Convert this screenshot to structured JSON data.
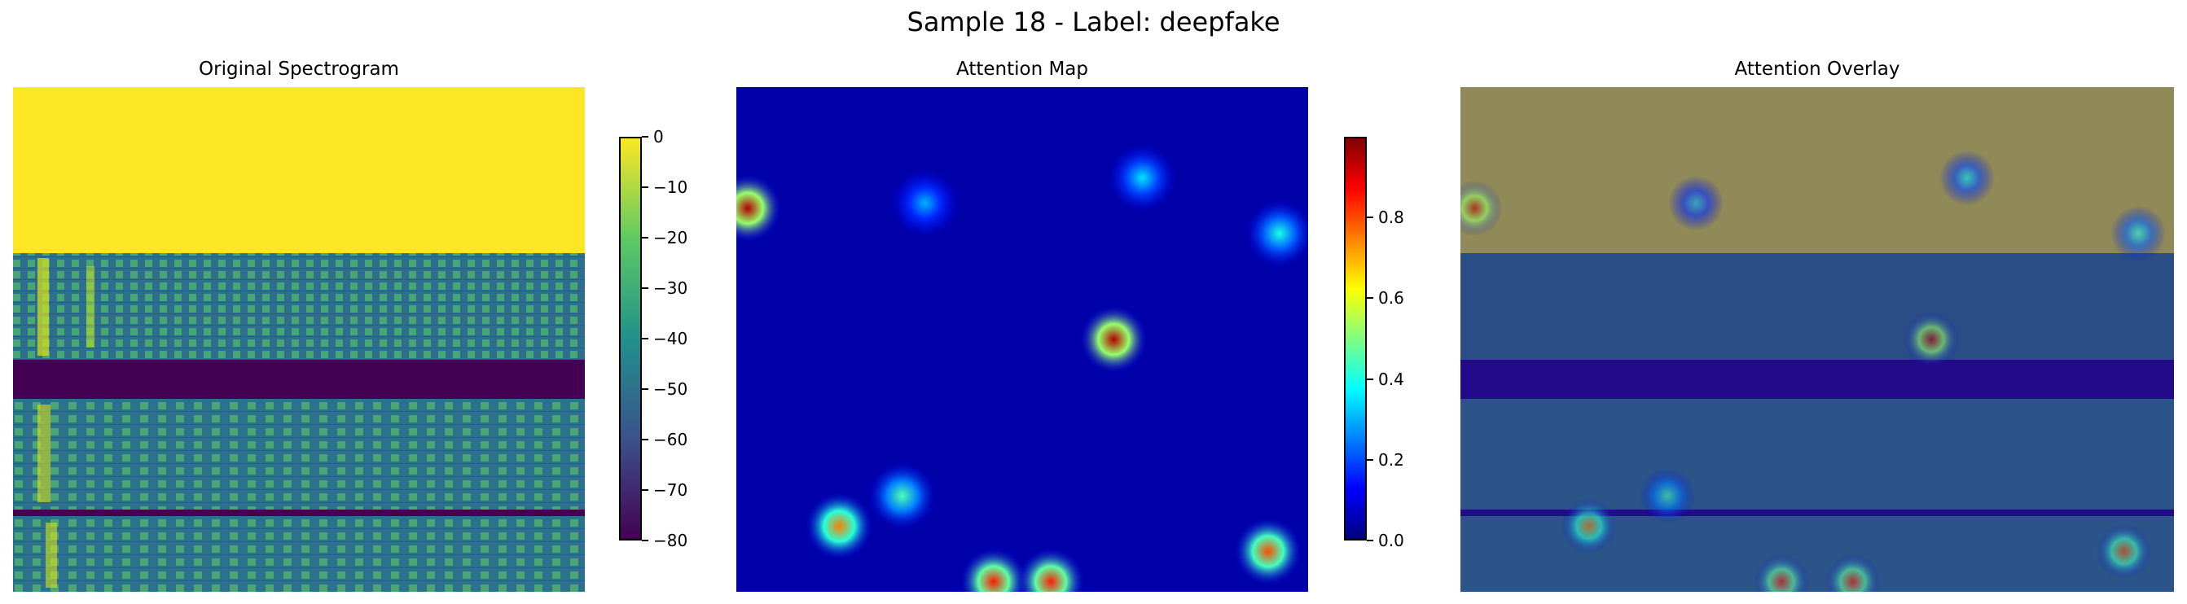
{
  "figure": {
    "title": "Sample 18 - Label: deepfake"
  },
  "chart_data": [
    {
      "type": "heatmap",
      "title": "Original Spectrogram",
      "colormap": "viridis",
      "axis": "off",
      "colorbar": {
        "ticks": [
          0,
          -10,
          -20,
          -30,
          -40,
          -50,
          -60,
          -70,
          -80
        ],
        "range": [
          -80,
          0
        ]
      },
      "bands": [
        {
          "from": 0.0,
          "to": 0.33,
          "value": 0
        },
        {
          "from": 0.33,
          "to": 0.54,
          "value": -35
        },
        {
          "from": 0.54,
          "to": 0.62,
          "value": -80
        },
        {
          "from": 0.62,
          "to": 0.84,
          "value": -40
        },
        {
          "from": 0.84,
          "to": 0.85,
          "value": -80
        },
        {
          "from": 0.85,
          "to": 1.0,
          "value": -38
        }
      ]
    },
    {
      "type": "heatmap",
      "title": "Attention Map",
      "colormap": "jet",
      "axis": "off",
      "colorbar": {
        "ticks": [
          0.0,
          0.2,
          0.4,
          0.6,
          0.8
        ],
        "range": [
          0,
          1
        ]
      },
      "hotspots": [
        {
          "x": 0.02,
          "y": 0.24,
          "value": 0.95
        },
        {
          "x": 0.66,
          "y": 0.5,
          "value": 0.95
        },
        {
          "x": 0.18,
          "y": 0.87,
          "value": 0.75
        },
        {
          "x": 0.29,
          "y": 0.81,
          "value": 0.45
        },
        {
          "x": 0.45,
          "y": 0.98,
          "value": 0.85
        },
        {
          "x": 0.55,
          "y": 0.98,
          "value": 0.85
        },
        {
          "x": 0.93,
          "y": 0.92,
          "value": 0.8
        },
        {
          "x": 0.95,
          "y": 0.29,
          "value": 0.4
        },
        {
          "x": 0.71,
          "y": 0.18,
          "value": 0.35
        },
        {
          "x": 0.33,
          "y": 0.23,
          "value": 0.3
        }
      ]
    },
    {
      "type": "heatmap",
      "title": "Attention Overlay",
      "colormap": "jet over viridis",
      "axis": "off"
    }
  ]
}
